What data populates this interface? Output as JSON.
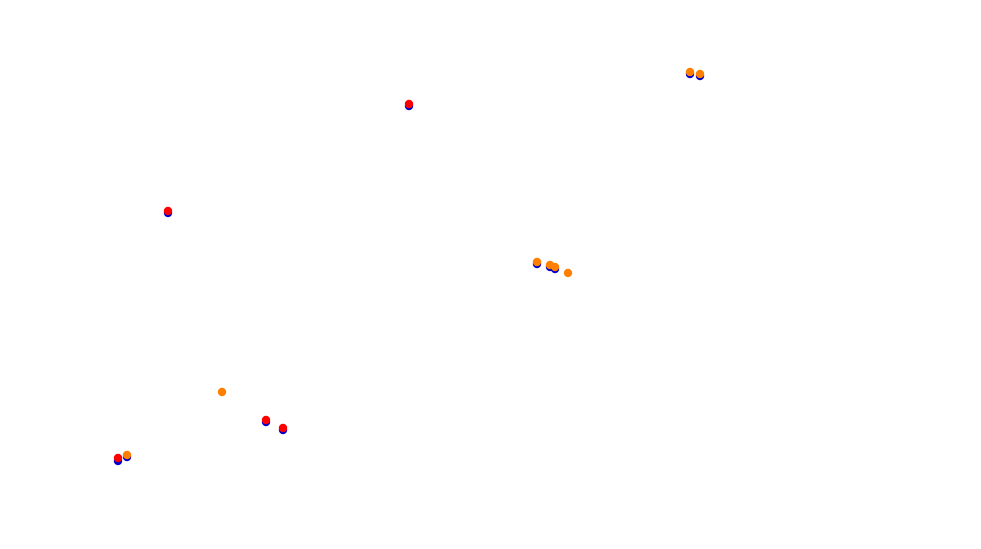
{
  "colors": {
    "background": "#ffffff",
    "blue": "#0000cc",
    "red": "#ff0000",
    "orange": "#ff8000"
  },
  "legend": []
}
